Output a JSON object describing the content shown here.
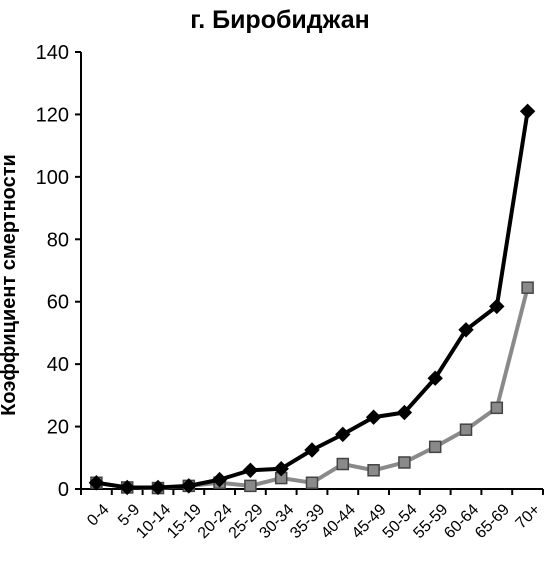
{
  "chart_data": {
    "type": "line",
    "title": "г. Биробиджан",
    "xlabel": "",
    "ylabel": "Коэффициент смертности",
    "ylim": [
      0,
      140
    ],
    "yticks": [
      0,
      20,
      40,
      60,
      80,
      100,
      120,
      140
    ],
    "grid": false,
    "legend": "none",
    "categories": [
      "0-4",
      "5-9",
      "10-14",
      "15-19",
      "20-24",
      "25-29",
      "30-34",
      "35-39",
      "40-44",
      "45-49",
      "50-54",
      "55-59",
      "60-64",
      "65-69",
      "70+"
    ],
    "series": [
      {
        "color": "#000000",
        "marker": "diamond",
        "values": [
          2,
          0.5,
          0.5,
          1,
          3,
          6,
          6.5,
          12.5,
          17.5,
          23,
          24.5,
          35.5,
          51,
          58.5,
          121
        ]
      },
      {
        "color": "#8a8a8a",
        "marker": "square",
        "values": [
          2,
          0.5,
          0.3,
          1,
          2,
          1,
          3.5,
          2,
          8,
          6,
          8.5,
          13.5,
          19,
          26,
          64.5
        ]
      }
    ]
  }
}
